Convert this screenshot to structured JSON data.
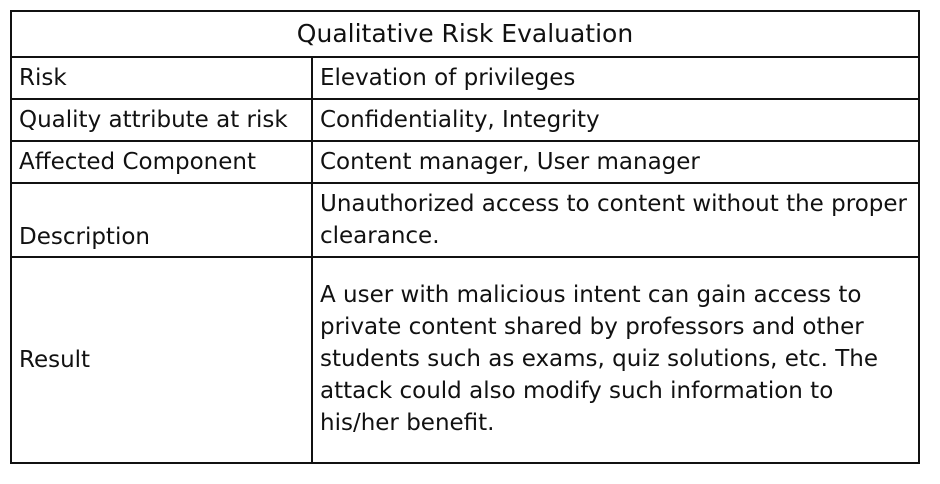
{
  "table": {
    "title": "Qualitative Risk Evaluation",
    "rows": [
      {
        "label": "Risk",
        "value": "Elevation of privileges"
      },
      {
        "label": "Quality attribute at risk",
        "value": "Confidentiality, Integrity"
      },
      {
        "label": "Affected Component",
        "value": "Content manager, User manager"
      },
      {
        "label": "Description",
        "value": "Unauthorized access to content without the proper clearance."
      },
      {
        "label": "Result",
        "value": "A user with malicious intent can gain access to private content shared by professors and other students such as exams, quiz solutions, etc. The attack could also modify such information to his/her benefit."
      }
    ]
  }
}
